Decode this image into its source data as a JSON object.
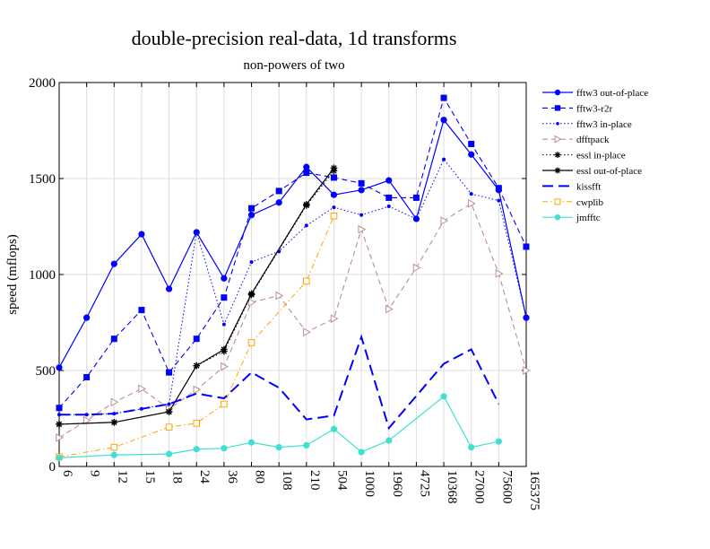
{
  "chart_data": {
    "type": "line",
    "title": "double-precision real-data, 1d transforms",
    "subtitle": "non-powers of two",
    "xlabel": "",
    "ylabel": "speed (mflops)",
    "ylim": [
      0,
      2000
    ],
    "yticks": [
      "0",
      "500",
      "1000",
      "1500",
      "2000"
    ],
    "categories": [
      "6",
      "9",
      "12",
      "15",
      "18",
      "24",
      "36",
      "80",
      "108",
      "210",
      "504",
      "1000",
      "1960",
      "4725",
      "10368",
      "27000",
      "75600",
      "165375"
    ],
    "grid": true,
    "legend_position": "right",
    "series": [
      {
        "name": "fftw3 out-of-place",
        "color": "#0000ff",
        "dash": "solid",
        "marker": "circle",
        "values": [
          515,
          775,
          1055,
          1210,
          925,
          1220,
          980,
          1310,
          1375,
          1560,
          1415,
          1440,
          1490,
          1290,
          1805,
          1625,
          1440,
          775
        ]
      },
      {
        "name": "fftw3-r2r",
        "color": "#0000ff",
        "dash": "dashed",
        "marker": "square",
        "values": [
          305,
          465,
          665,
          815,
          490,
          665,
          880,
          1345,
          1435,
          1530,
          1505,
          1475,
          1400,
          1400,
          1920,
          1680,
          1450,
          1145
        ]
      },
      {
        "name": "fftw3 in-place",
        "color": "#0000ff",
        "dash": "dotted",
        "marker": "dot",
        "values": [
          270,
          270,
          275,
          300,
          325,
          1220,
          740,
          1065,
          1120,
          1255,
          1350,
          1310,
          1355,
          1290,
          1600,
          1420,
          1385,
          775
        ]
      },
      {
        "name": "dfftpack",
        "color": "#bc8f8f",
        "dash": "dashed",
        "marker": "triangle",
        "values": [
          150,
          240,
          335,
          405,
          300,
          400,
          520,
          855,
          890,
          700,
          770,
          1235,
          820,
          1035,
          1280,
          1370,
          1005,
          500
        ]
      },
      {
        "name": "essl in-place",
        "color": "#000000",
        "dash": "dotted",
        "marker": "star",
        "values": [
          220,
          null,
          230,
          null,
          285,
          525,
          600,
          895,
          null,
          1360,
          1540,
          null,
          null,
          null,
          null,
          null,
          null,
          null
        ]
      },
      {
        "name": "essl out-of-place",
        "color": "#000000",
        "dash": "solid",
        "marker": "star",
        "values": [
          220,
          null,
          230,
          null,
          285,
          525,
          610,
          900,
          null,
          1365,
          1555,
          null,
          null,
          null,
          null,
          null,
          null,
          null
        ]
      },
      {
        "name": "kissfft",
        "color": "#0000ff",
        "dash": "longdash",
        "marker": "none",
        "values": [
          270,
          270,
          275,
          300,
          325,
          380,
          355,
          490,
          410,
          245,
          265,
          675,
          200,
          null,
          535,
          610,
          325,
          null
        ]
      },
      {
        "name": "cwplib",
        "color": "#ffa500",
        "dash": "dashdot",
        "marker": "opensquare",
        "values": [
          50,
          null,
          100,
          null,
          205,
          225,
          325,
          645,
          null,
          965,
          1305,
          null,
          null,
          null,
          null,
          null,
          null,
          null
        ]
      },
      {
        "name": "jmfftc",
        "color": "#40e0d0",
        "dash": "solid",
        "marker": "circle",
        "values": [
          45,
          null,
          60,
          null,
          65,
          90,
          95,
          125,
          100,
          110,
          195,
          75,
          135,
          null,
          365,
          100,
          130,
          null
        ]
      }
    ]
  }
}
